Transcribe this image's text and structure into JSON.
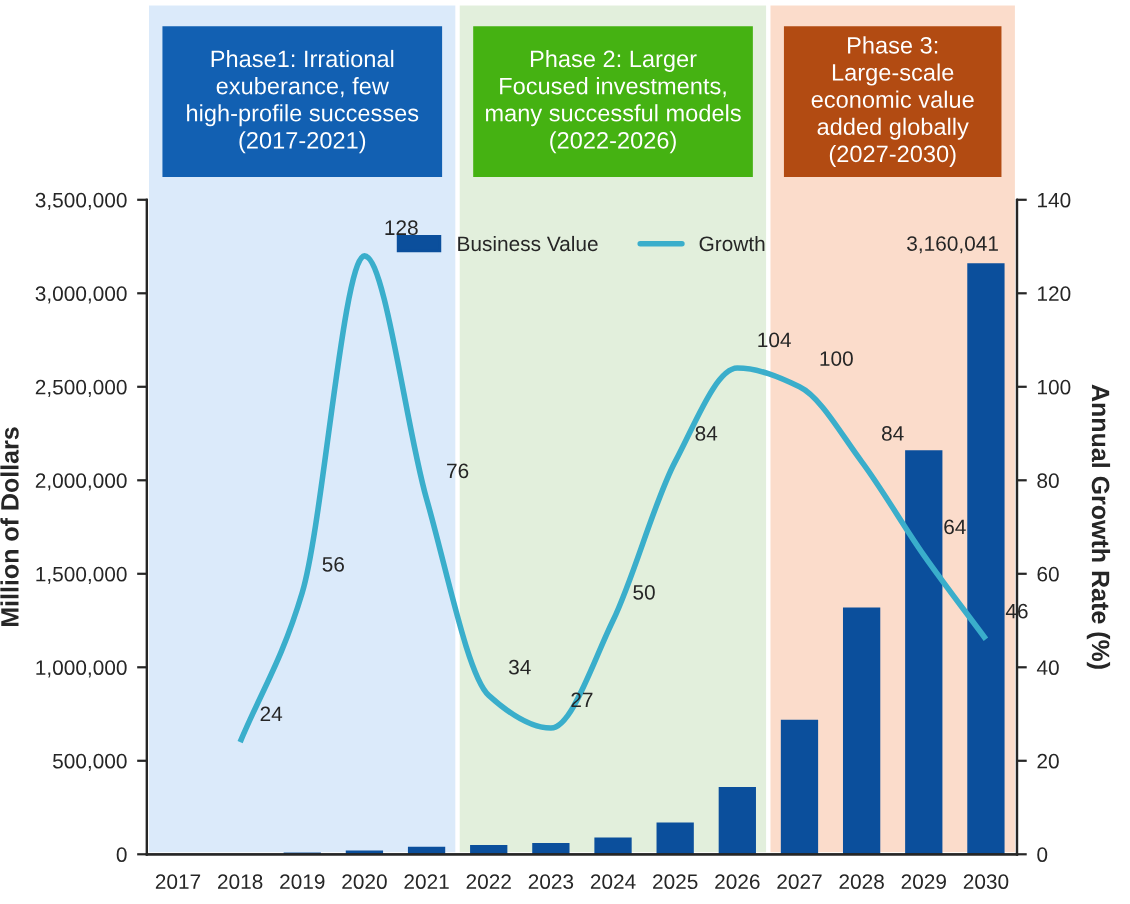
{
  "chart_data": {
    "type": "bar",
    "categories": [
      "2017",
      "2018",
      "2019",
      "2020",
      "2021",
      "2022",
      "2023",
      "2024",
      "2025",
      "2026",
      "2027",
      "2028",
      "2029",
      "2030"
    ],
    "series": [
      {
        "name": "Business Value",
        "color": "#0b4f9c",
        "values": [
          null,
          null,
          10000,
          20000,
          40000,
          50000,
          60000,
          90000,
          170000,
          360000,
          720000,
          1320000,
          2160000,
          3160041
        ],
        "value_labels": [
          null,
          null,
          null,
          null,
          null,
          null,
          null,
          null,
          null,
          null,
          null,
          null,
          null,
          "3,160,041"
        ]
      },
      {
        "name": "Growth",
        "type": "line",
        "axis": "y2",
        "color": "#3aaecb",
        "values": [
          null,
          24,
          56,
          128,
          76,
          34,
          27,
          50,
          84,
          104,
          100,
          84,
          64,
          46
        ],
        "data_labels": true
      }
    ],
    "ylabel": "Million of Dollars",
    "y2label": "Annual Growth Rate (%)",
    "ylim": [
      0,
      3500000
    ],
    "yticks": [
      0,
      {
        "value": 500000,
        "label": "500,000"
      },
      {
        "value": 1000000,
        "label": "1,000,000"
      },
      {
        "value": 1500000,
        "label": "1,500,000"
      },
      {
        "value": 2000000,
        "label": "2,000,000"
      },
      {
        "value": 2500000,
        "label": "2,500,000"
      },
      {
        "value": 3000000,
        "label": "3,000,000"
      },
      {
        "value": 3500000,
        "label": "3,500,000"
      }
    ],
    "y2lim": [
      0,
      140
    ],
    "y2ticks": [
      0,
      20,
      40,
      60,
      80,
      100,
      120,
      140
    ],
    "bands": [
      {
        "axis": "x",
        "from": "2017",
        "to": "2021",
        "label": "Phase1: Irrational exuberance, few high-profile successes (2017-2021)",
        "color": "#dbeafa"
      },
      {
        "axis": "x",
        "from": "2022",
        "to": "2026",
        "label": "Phase 2: Larger Focused investments, many successful models (2022-2026)",
        "color": "#e2efdc"
      },
      {
        "axis": "x",
        "from": "2027",
        "to": "2030",
        "label": "Phase 3: Large-scale economic value added globally (2027-2030)",
        "color": "#fbdccb"
      }
    ],
    "legend": "top",
    "grid": false
  }
}
